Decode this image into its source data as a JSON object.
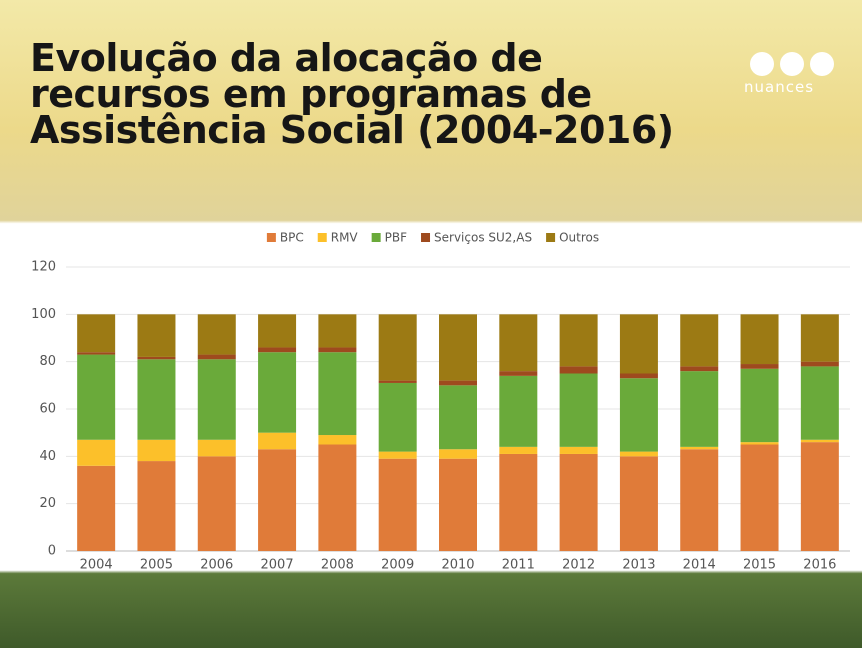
{
  "brand": "nuances",
  "chart_data": {
    "type": "stacked_bar",
    "title": [
      "Evolução da alocação de",
      "recursos em programas de",
      "Assistência Social (2004-2016)"
    ],
    "categories": [
      "2004",
      "2005",
      "2006",
      "2007",
      "2008",
      "2009",
      "2010",
      "2011",
      "2012",
      "2013",
      "2014",
      "2015",
      "2016"
    ],
    "series": [
      {
        "name": "BPC",
        "color": "#e07b39",
        "values": [
          36,
          38,
          40,
          43,
          45,
          39,
          39,
          41,
          41,
          40,
          43,
          45,
          46
        ]
      },
      {
        "name": "RMV",
        "color": "#fcc02a",
        "values": [
          11,
          9,
          7,
          7,
          4,
          3,
          4,
          3,
          3,
          2,
          1,
          1,
          1
        ]
      },
      {
        "name": "PBF",
        "color": "#6aaa3a",
        "values": [
          36,
          34,
          34,
          34,
          35,
          29,
          27,
          30,
          31,
          31,
          32,
          31,
          31
        ]
      },
      {
        "name": "Serviços SU2,AS",
        "color": "#9e4a1e",
        "values": [
          1,
          1,
          2,
          2,
          2,
          1,
          2,
          2,
          3,
          2,
          2,
          2,
          2
        ]
      },
      {
        "name": "Outros",
        "color": "#9c7a14",
        "values": [
          16,
          18,
          17,
          14,
          14,
          28,
          28,
          24,
          22,
          25,
          22,
          21,
          20
        ]
      }
    ],
    "ylim": [
      0,
      120
    ],
    "yticks": [
      0,
      20,
      40,
      60,
      80,
      100,
      120
    ],
    "grid": true,
    "legend": "top"
  }
}
